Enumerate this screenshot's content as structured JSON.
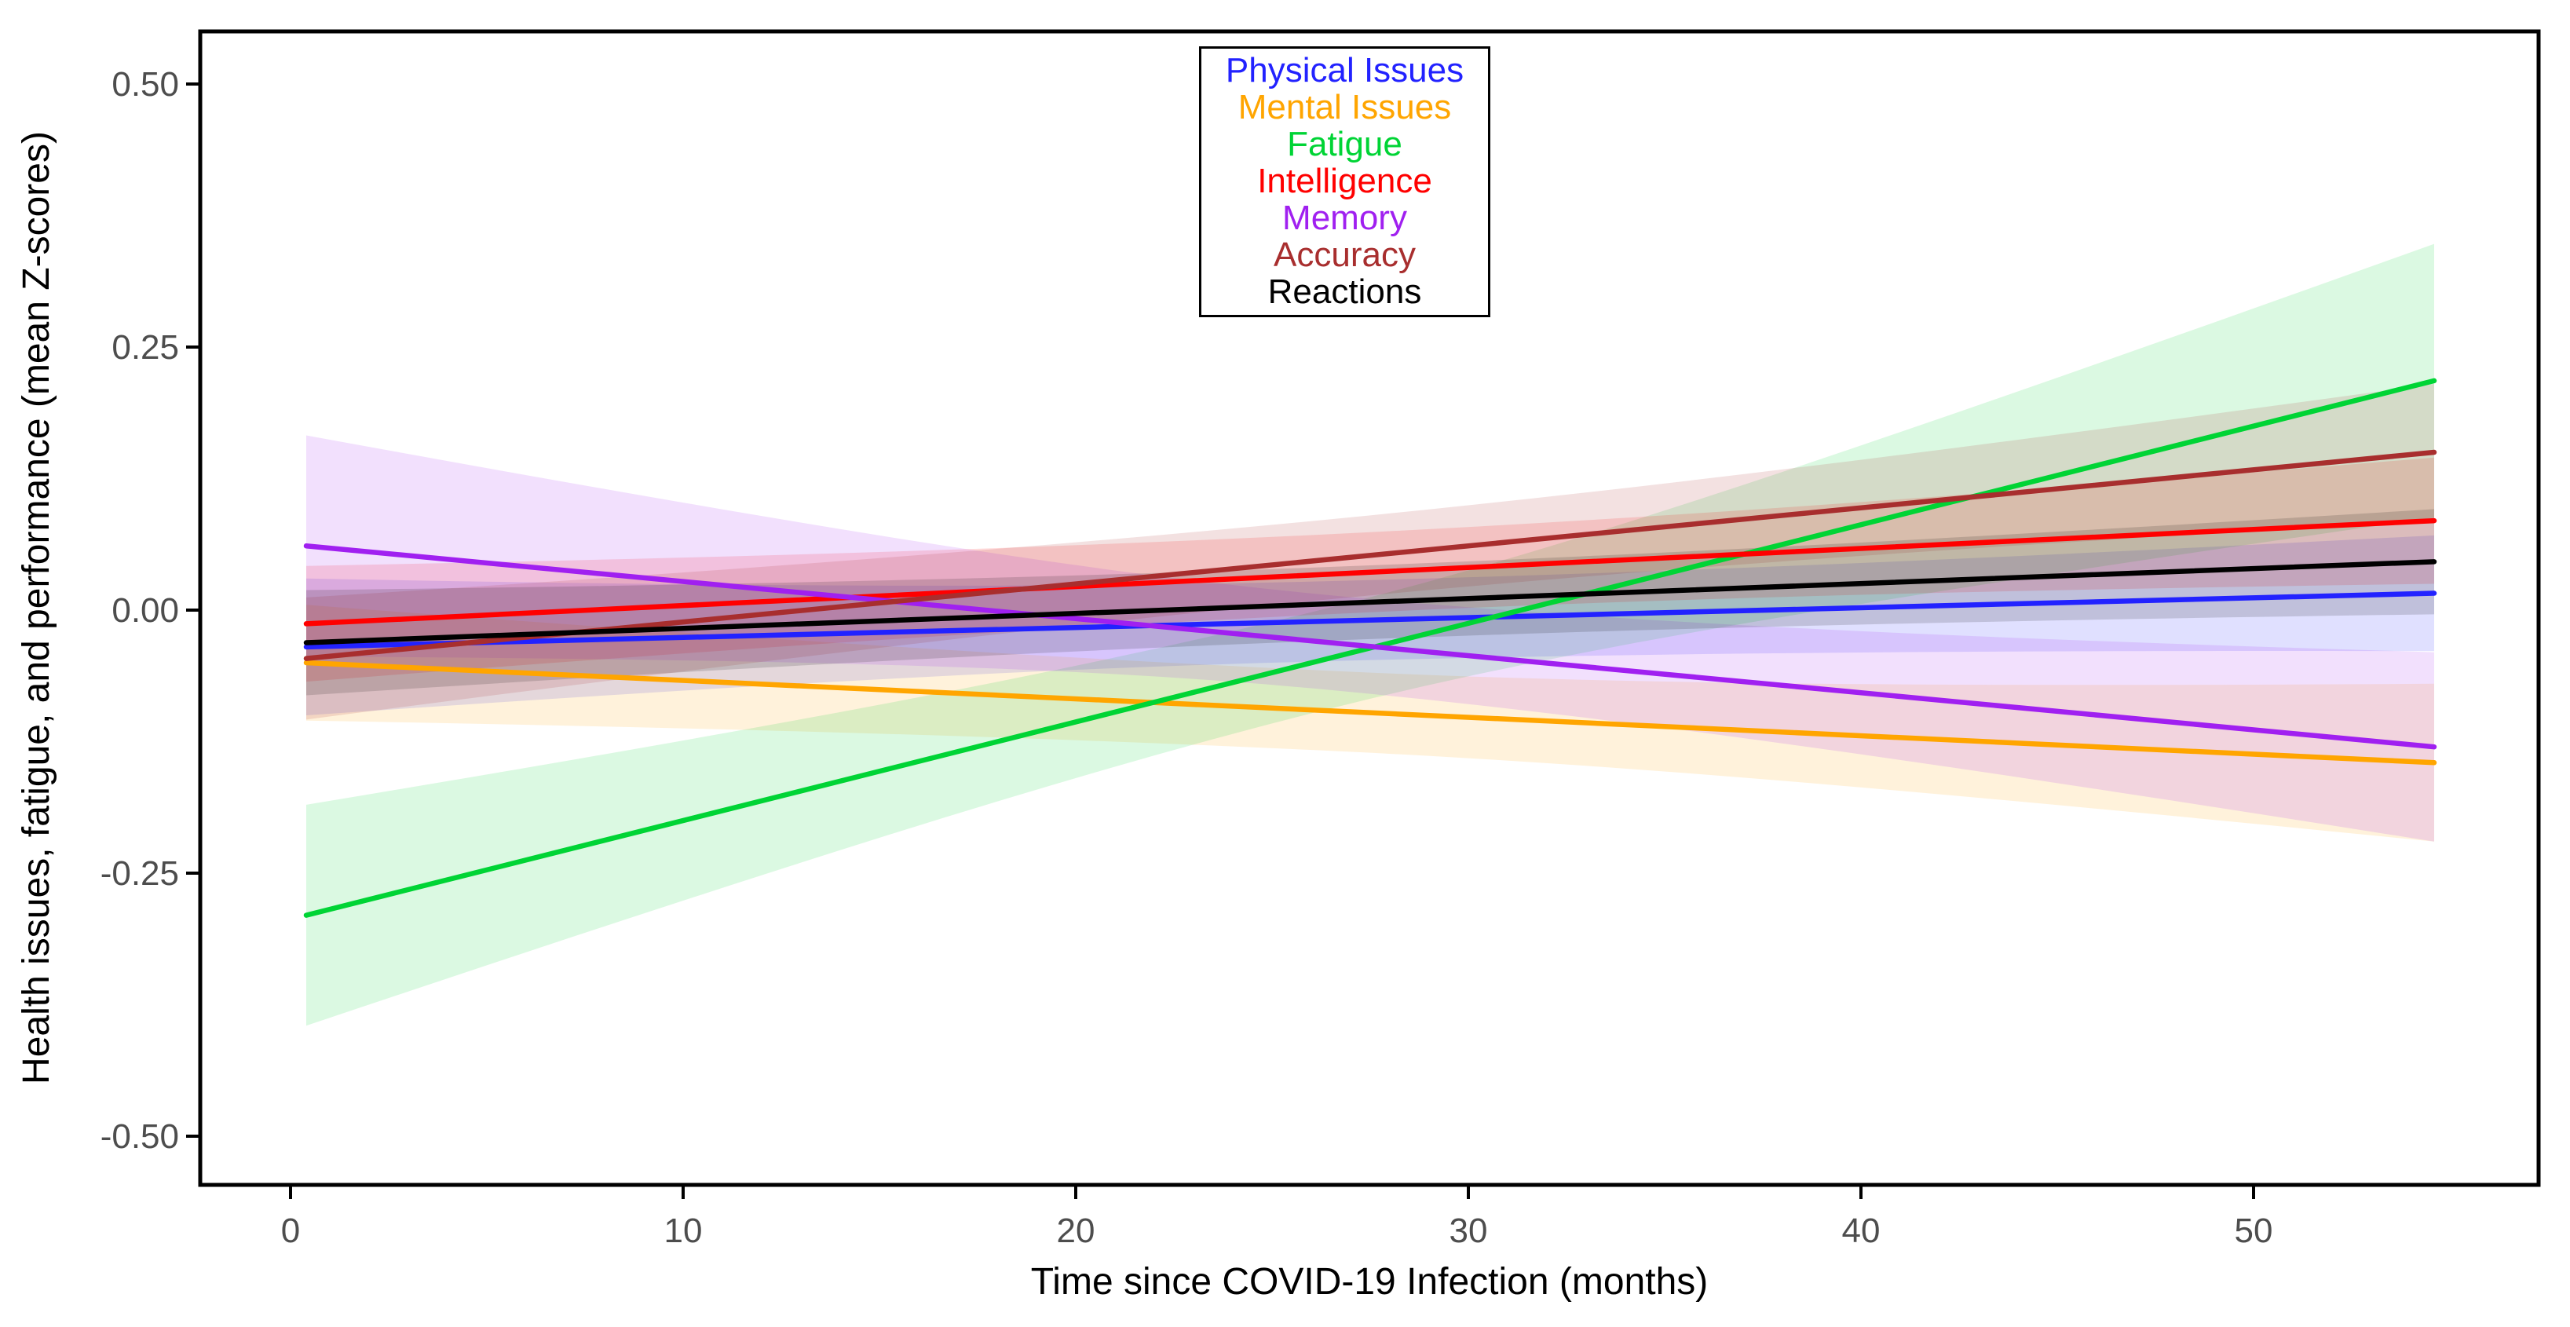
{
  "legend": {
    "entries": [
      {
        "label": "Physical Issues",
        "color": "#2222ff"
      },
      {
        "label": "Mental Issues",
        "color": "#ffa500"
      },
      {
        "label": "Fatigue",
        "color": "#00d435"
      },
      {
        "label": "Intelligence",
        "color": "#ff0000"
      },
      {
        "label": "Memory",
        "color": "#a020f0"
      },
      {
        "label": "Accuracy",
        "color": "#a82e2e"
      },
      {
        "label": "Reactions",
        "color": "#000000"
      }
    ]
  },
  "chart_data": {
    "type": "line",
    "title": "",
    "xlabel": "Time since COVID-19 Infection (months)",
    "ylabel": "Health issues, fatigue, and performance (mean Z-scores)",
    "xlim": [
      -2.3,
      57.3
    ],
    "ylim": [
      -0.55,
      0.55
    ],
    "grid": false,
    "confidence_bands": true,
    "legend_position": "top-center",
    "x_ticks": [
      0,
      10,
      20,
      30,
      40,
      50
    ],
    "y_ticks": [
      {
        "value": 0.5,
        "label": "0.50"
      },
      {
        "value": 0.25,
        "label": "0.25"
      },
      {
        "value": 0.0,
        "label": "0.00"
      },
      {
        "value": -0.25,
        "label": "-0.25"
      },
      {
        "value": -0.5,
        "label": "-0.50"
      }
    ],
    "fit_x_range": [
      0.4,
      54.6
    ],
    "ci_pinch_month": 26.5,
    "series": [
      {
        "name": "Physical Issues",
        "color": "#2222ff",
        "x": [
          0.4,
          54.6
        ],
        "y": [
          -0.035,
          0.016
        ],
        "ci": {
          "start": 0.065,
          "mid": 0.038,
          "end": 0.055
        }
      },
      {
        "name": "Mental Issues",
        "color": "#ffa500",
        "x": [
          0.4,
          54.6
        ],
        "y": [
          -0.05,
          -0.145
        ],
        "ci": {
          "start": 0.055,
          "mid": 0.038,
          "end": 0.075
        }
      },
      {
        "name": "Fatigue",
        "color": "#00d435",
        "x": [
          0.4,
          54.6
        ],
        "y": [
          -0.29,
          0.218
        ],
        "ci": {
          "start": 0.105,
          "mid": 0.048,
          "end": 0.13
        }
      },
      {
        "name": "Intelligence",
        "color": "#ff0000",
        "x": [
          0.4,
          54.6
        ],
        "y": [
          -0.013,
          0.085
        ],
        "ci": {
          "start": 0.055,
          "mid": 0.038,
          "end": 0.06
        }
      },
      {
        "name": "Memory",
        "color": "#a020f0",
        "x": [
          0.4,
          54.6
        ],
        "y": [
          0.061,
          -0.13
        ],
        "ci": {
          "start": 0.105,
          "mid": 0.045,
          "end": 0.09
        }
      },
      {
        "name": "Accuracy",
        "color": "#a82e2e",
        "x": [
          0.4,
          54.6
        ],
        "y": [
          -0.046,
          0.15
        ],
        "ci": {
          "start": 0.058,
          "mid": 0.038,
          "end": 0.065
        }
      },
      {
        "name": "Reactions",
        "color": "#000000",
        "x": [
          0.4,
          54.6
        ],
        "y": [
          -0.031,
          0.046
        ],
        "ci": {
          "start": 0.05,
          "mid": 0.035,
          "end": 0.05
        }
      }
    ]
  }
}
